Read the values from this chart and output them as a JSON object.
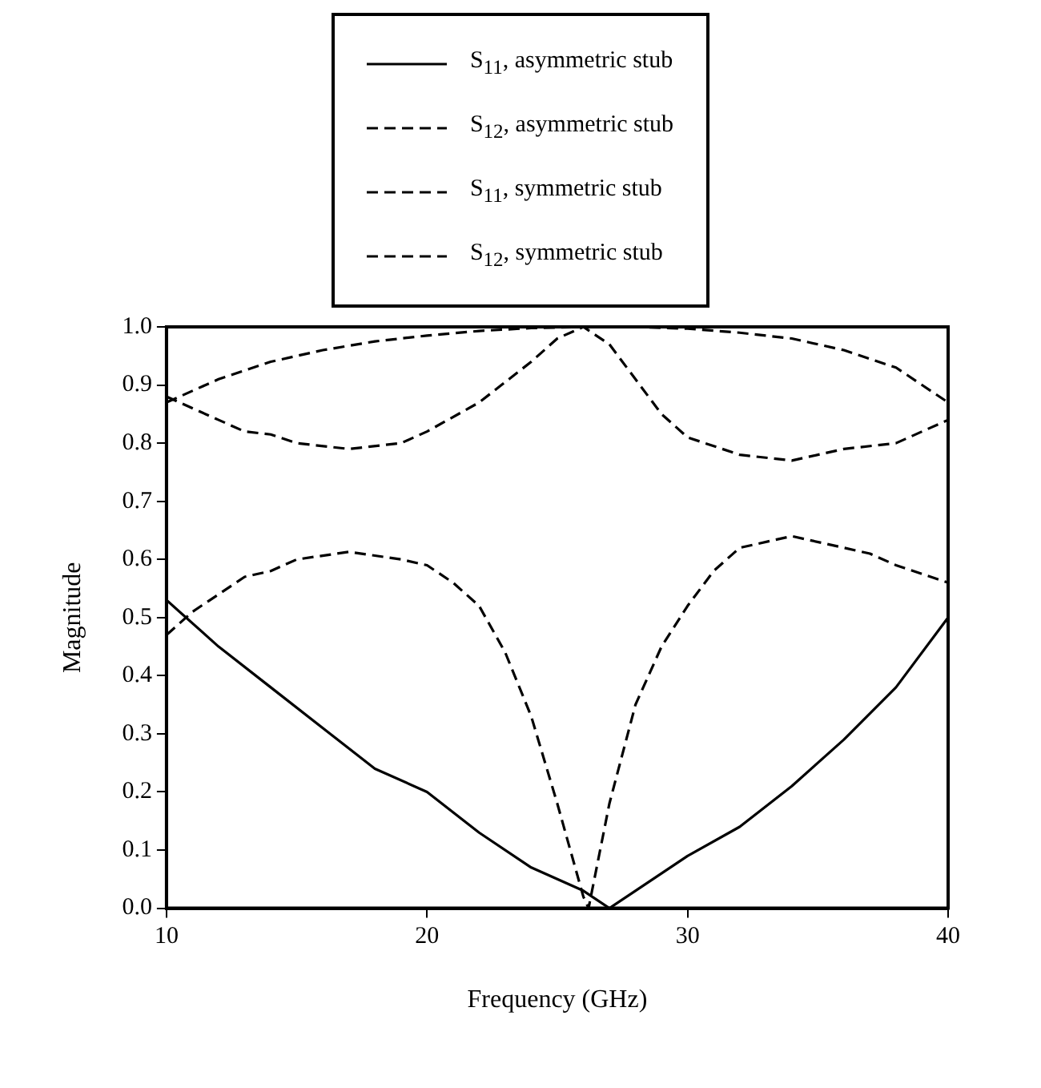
{
  "chart_data": {
    "type": "line",
    "xlabel": "Frequency (GHz)",
    "ylabel": "Magnitude",
    "legend": "top",
    "grid": false,
    "marker": "none",
    "xlim": [
      10,
      40
    ],
    "xticks": [
      10,
      20,
      30,
      40
    ],
    "ylim": [
      0,
      1
    ],
    "yticks": [
      {
        "value": 0,
        "label": "0.0"
      },
      {
        "value": 0.1,
        "label": "0.1"
      },
      {
        "value": 0.2,
        "label": "0.2"
      },
      {
        "value": 0.3,
        "label": "0.3"
      },
      {
        "value": 0.4,
        "label": "0.4"
      },
      {
        "value": 0.5,
        "label": "0.5"
      },
      {
        "value": 0.6,
        "label": "0.6"
      },
      {
        "value": 0.7,
        "label": "0.7"
      },
      {
        "value": 0.8,
        "label": "0.8"
      },
      {
        "value": 0.9,
        "label": "0.9"
      },
      {
        "value": 1,
        "label": "1.0"
      }
    ],
    "series": [
      {
        "name": "S$_{11}$, asymmetric stub",
        "color": "#000000",
        "line_style": "solid",
        "x": [
          10,
          12,
          14,
          16,
          18,
          20,
          22,
          24,
          26,
          27,
          28,
          30,
          32,
          34,
          36,
          38,
          40
        ],
        "values": [
          0.53,
          0.45,
          0.38,
          0.31,
          0.24,
          0.2,
          0.13,
          0.07,
          0.03,
          0,
          0.03,
          0.09,
          0.14,
          0.21,
          0.29,
          0.38,
          0.5
        ]
      },
      {
        "name": "S$_{12}$, asymmetric stub",
        "color": "#000000",
        "line_style": "dashed",
        "x": [
          10,
          12,
          14,
          16,
          18,
          20,
          22,
          24,
          26,
          28,
          30,
          32,
          34,
          36,
          38,
          40
        ],
        "values": [
          0.87,
          0.91,
          0.94,
          0.96,
          0.975,
          0.985,
          0.993,
          0.998,
          1,
          1,
          0.997,
          0.99,
          0.98,
          0.96,
          0.93,
          0.87
        ]
      },
      {
        "name": "S$_{11}$, symmetric stub",
        "color": "#000000",
        "line_style": "dashed",
        "x": [
          10,
          12,
          13,
          14,
          15,
          17,
          19,
          20,
          22,
          24,
          25,
          26,
          27,
          28,
          29,
          30,
          32,
          34,
          36,
          38,
          40
        ],
        "values": [
          0.88,
          0.84,
          0.82,
          0.815,
          0.8,
          0.79,
          0.8,
          0.82,
          0.87,
          0.94,
          0.98,
          1,
          0.97,
          0.91,
          0.85,
          0.81,
          0.78,
          0.77,
          0.79,
          0.8,
          0.84
        ]
      },
      {
        "name": "S$_{12}$, symmetric stub",
        "color": "#000000",
        "line_style": "dashed",
        "x": [
          10,
          11,
          13,
          14,
          15,
          17,
          19,
          20,
          21,
          22,
          23,
          24,
          25,
          26,
          26.2,
          27,
          28,
          29,
          30,
          31,
          32,
          34,
          36,
          37,
          38,
          40
        ],
        "values": [
          0.47,
          0.51,
          0.57,
          0.58,
          0.6,
          0.613,
          0.6,
          0.59,
          0.56,
          0.52,
          0.44,
          0.33,
          0.18,
          0.02,
          0,
          0.18,
          0.35,
          0.45,
          0.52,
          0.58,
          0.62,
          0.64,
          0.62,
          0.61,
          0.59,
          0.56
        ]
      }
    ]
  }
}
